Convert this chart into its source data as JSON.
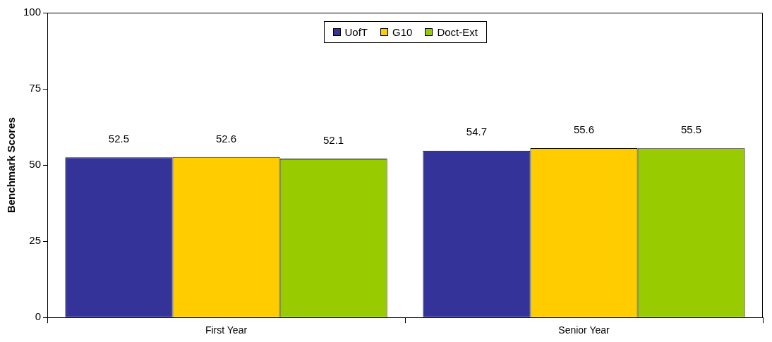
{
  "chart_data": {
    "type": "bar",
    "ylabel": "Benchmark Scores",
    "categories": [
      "First Year",
      "Senior Year"
    ],
    "series": [
      {
        "name": "UofT",
        "color": "#333399",
        "values": [
          52.5,
          54.7
        ]
      },
      {
        "name": "G10",
        "color": "#ffcc00",
        "values": [
          52.6,
          55.6
        ]
      },
      {
        "name": "Doct-Ext",
        "color": "#99cc00",
        "values": [
          52.1,
          55.5
        ]
      }
    ],
    "ylim": [
      0,
      100
    ],
    "yticks": [
      0,
      25,
      50,
      75,
      100
    ],
    "grid": false,
    "legend": "top",
    "data_labels": true
  }
}
